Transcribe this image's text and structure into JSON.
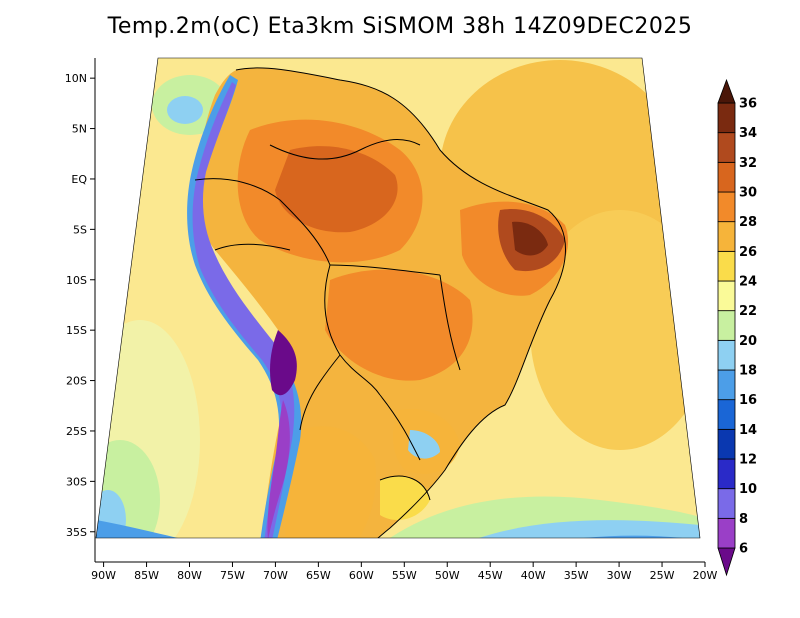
{
  "title": "Temp.2m(oC) Eta3km SiSMOM 38h 14Z09DEC2025",
  "map": {
    "lon_range": [
      -91,
      -20
    ],
    "lat_range": [
      -38,
      12
    ],
    "lon_ticks": [
      {
        "value": -90,
        "label": "90W"
      },
      {
        "value": -85,
        "label": "85W"
      },
      {
        "value": -80,
        "label": "80W"
      },
      {
        "value": -75,
        "label": "75W"
      },
      {
        "value": -70,
        "label": "70W"
      },
      {
        "value": -65,
        "label": "65W"
      },
      {
        "value": -60,
        "label": "60W"
      },
      {
        "value": -55,
        "label": "55W"
      },
      {
        "value": -50,
        "label": "50W"
      },
      {
        "value": -45,
        "label": "45W"
      },
      {
        "value": -40,
        "label": "40W"
      },
      {
        "value": -35,
        "label": "35W"
      },
      {
        "value": -30,
        "label": "30W"
      },
      {
        "value": -25,
        "label": "25W"
      },
      {
        "value": -20,
        "label": "20W"
      }
    ],
    "lat_ticks": [
      {
        "value": 10,
        "label": "10N"
      },
      {
        "value": 5,
        "label": "5N"
      },
      {
        "value": 0,
        "label": "EQ"
      },
      {
        "value": -5,
        "label": "5S"
      },
      {
        "value": -10,
        "label": "10S"
      },
      {
        "value": -15,
        "label": "15S"
      },
      {
        "value": -20,
        "label": "20S"
      },
      {
        "value": -25,
        "label": "25S"
      },
      {
        "value": -30,
        "label": "30S"
      },
      {
        "value": -35,
        "label": "35S"
      }
    ]
  },
  "colorbar": {
    "levels": [
      "6",
      "8",
      "10",
      "12",
      "14",
      "16",
      "18",
      "20",
      "22",
      "24",
      "26",
      "28",
      "30",
      "32",
      "34",
      "36"
    ],
    "colors": [
      "#6a0a8a",
      "#9a3fc7",
      "#7a6ae8",
      "#2a2ac8",
      "#0a38b0",
      "#1a66d6",
      "#4c9ee8",
      "#8ed0f2",
      "#c8f0a0",
      "#fafa98",
      "#fadc4a",
      "#f6b43a",
      "#f28a2a",
      "#d8661e",
      "#b04a1e",
      "#7a2a10",
      "#4a1608"
    ]
  }
}
